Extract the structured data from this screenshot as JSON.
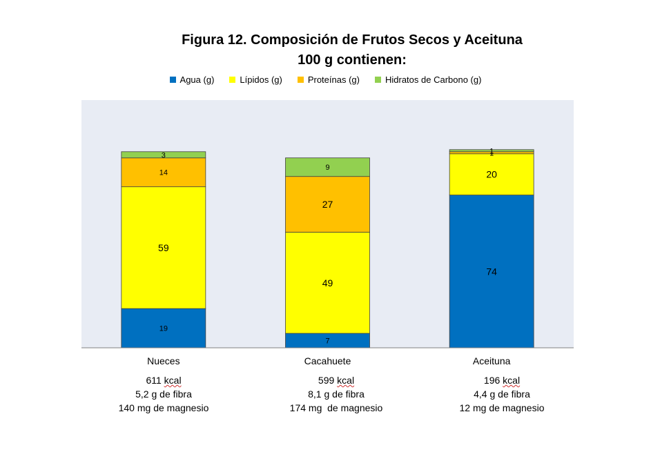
{
  "chart_data": {
    "type": "bar",
    "stacked": true,
    "title": "Figura 12. Composición de Frutos Secos y Aceituna",
    "subtitle": "100 g contienen:",
    "categories": [
      "Nueces",
      "Cacahuete",
      "Aceituna"
    ],
    "series": [
      {
        "name": "Agua (g)",
        "color": "#0070C0",
        "values": [
          19,
          7,
          74
        ]
      },
      {
        "name": "Lípidos (g)",
        "color": "#FFFF00",
        "values": [
          59,
          49,
          20
        ]
      },
      {
        "name": "Proteínas (g)",
        "color": "#FFC000",
        "values": [
          14,
          27,
          1
        ]
      },
      {
        "name": "Hidratos de Carbono (g)",
        "color": "#92D050",
        "values": [
          3,
          9,
          1
        ]
      }
    ],
    "ylim": [
      0,
      120
    ],
    "grid": false,
    "legend_position": "top",
    "plot_background": "#E8ECF4"
  },
  "annotations": [
    {
      "kcal": "611",
      "kcal_unit": "kcal",
      "fibra": "5,2 g de fibra",
      "magnesio": "140 mg de magnesio"
    },
    {
      "kcal": "599",
      "kcal_unit": "kcal",
      "fibra": "8,1 g de fibra",
      "magnesio": "174 mg  de magnesio"
    },
    {
      "kcal": "196",
      "kcal_unit": "kcal",
      "fibra": "4,4 g de fibra",
      "magnesio": "12 mg de magnesio"
    }
  ]
}
